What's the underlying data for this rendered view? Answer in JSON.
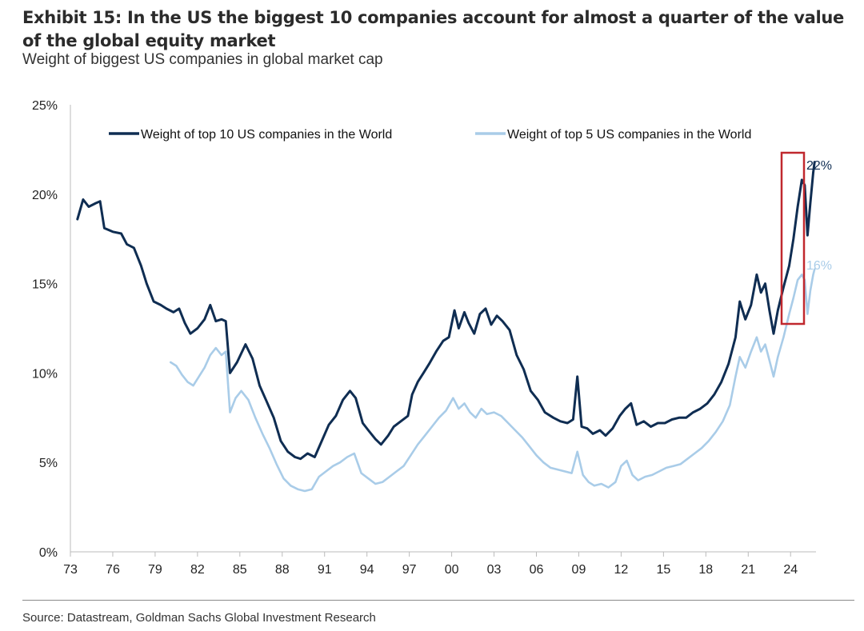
{
  "header": {
    "title": "Exhibit 15: In the US the biggest 10 companies account for almost a quarter of the value of the global equity market",
    "subtitle": "Weight of biggest US companies in global market cap"
  },
  "footer": {
    "source": "Source: Datastream, Goldman Sachs Global Investment Research"
  },
  "colors": {
    "top10": "#0f2d52",
    "top5": "#a9cce8",
    "highlight_box": "#c0282e",
    "axis": "#bbbbbb"
  },
  "chart_data": {
    "type": "line",
    "title": "Exhibit 15: In the US the biggest 10 companies account for almost a quarter of the value of the global equity market",
    "subtitle": "Weight of biggest US companies in global market cap",
    "xlabel": "",
    "ylabel": "",
    "x_ticks": [
      "73",
      "76",
      "79",
      "82",
      "85",
      "88",
      "91",
      "94",
      "97",
      "00",
      "03",
      "06",
      "09",
      "12",
      "15",
      "18",
      "21",
      "24"
    ],
    "x_tick_years": [
      1973,
      1976,
      1979,
      1982,
      1985,
      1988,
      1991,
      1994,
      1997,
      2000,
      2003,
      2006,
      2009,
      2012,
      2015,
      2018,
      2021,
      2024
    ],
    "y_ticks": [
      "0%",
      "5%",
      "10%",
      "15%",
      "20%",
      "25%"
    ],
    "ylim": [
      0,
      25
    ],
    "xlim": [
      1973,
      2025.8
    ],
    "grid": false,
    "legend_position": "top",
    "series": [
      {
        "name": "Weight of top 10 US companies in the World",
        "color": "#0f2d52",
        "end_label": "22%",
        "points": [
          [
            1973.5,
            18.6
          ],
          [
            1973.9,
            19.7
          ],
          [
            1974.3,
            19.3
          ],
          [
            1974.8,
            19.5
          ],
          [
            1975.1,
            19.6
          ],
          [
            1975.4,
            18.1
          ],
          [
            1976.0,
            17.9
          ],
          [
            1976.6,
            17.8
          ],
          [
            1977.0,
            17.2
          ],
          [
            1977.5,
            17.0
          ],
          [
            1978.0,
            16.0
          ],
          [
            1978.4,
            15.0
          ],
          [
            1978.9,
            14.0
          ],
          [
            1979.4,
            13.8
          ],
          [
            1979.8,
            13.6
          ],
          [
            1980.3,
            13.4
          ],
          [
            1980.7,
            13.6
          ],
          [
            1981.1,
            12.8
          ],
          [
            1981.5,
            12.2
          ],
          [
            1982.0,
            12.5
          ],
          [
            1982.5,
            13.0
          ],
          [
            1982.9,
            13.8
          ],
          [
            1983.3,
            12.9
          ],
          [
            1983.7,
            13.0
          ],
          [
            1984.0,
            12.9
          ],
          [
            1984.3,
            10.0
          ],
          [
            1984.8,
            10.6
          ],
          [
            1985.4,
            11.6
          ],
          [
            1985.9,
            10.8
          ],
          [
            1986.4,
            9.3
          ],
          [
            1986.9,
            8.4
          ],
          [
            1987.4,
            7.5
          ],
          [
            1987.9,
            6.2
          ],
          [
            1988.4,
            5.6
          ],
          [
            1988.9,
            5.3
          ],
          [
            1989.3,
            5.2
          ],
          [
            1989.8,
            5.5
          ],
          [
            1990.3,
            5.3
          ],
          [
            1990.8,
            6.2
          ],
          [
            1991.3,
            7.1
          ],
          [
            1991.8,
            7.6
          ],
          [
            1992.3,
            8.5
          ],
          [
            1992.8,
            9.0
          ],
          [
            1993.2,
            8.6
          ],
          [
            1993.7,
            7.2
          ],
          [
            1994.1,
            6.8
          ],
          [
            1994.6,
            6.3
          ],
          [
            1995.0,
            6.0
          ],
          [
            1995.5,
            6.5
          ],
          [
            1995.9,
            7.0
          ],
          [
            1996.4,
            7.3
          ],
          [
            1996.9,
            7.6
          ],
          [
            1997.2,
            8.8
          ],
          [
            1997.6,
            9.5
          ],
          [
            1998.0,
            10.0
          ],
          [
            1998.4,
            10.5
          ],
          [
            1998.9,
            11.2
          ],
          [
            1999.4,
            11.8
          ],
          [
            1999.8,
            12.0
          ],
          [
            2000.2,
            13.5
          ],
          [
            2000.5,
            12.5
          ],
          [
            2000.9,
            13.4
          ],
          [
            2001.2,
            12.8
          ],
          [
            2001.6,
            12.2
          ],
          [
            2002.0,
            13.3
          ],
          [
            2002.4,
            13.6
          ],
          [
            2002.8,
            12.7
          ],
          [
            2003.2,
            13.2
          ],
          [
            2003.6,
            12.9
          ],
          [
            2004.1,
            12.4
          ],
          [
            2004.6,
            11.0
          ],
          [
            2005.1,
            10.2
          ],
          [
            2005.6,
            9.0
          ],
          [
            2006.1,
            8.5
          ],
          [
            2006.6,
            7.8
          ],
          [
            2007.2,
            7.5
          ],
          [
            2007.7,
            7.3
          ],
          [
            2008.2,
            7.2
          ],
          [
            2008.6,
            7.4
          ],
          [
            2008.9,
            9.8
          ],
          [
            2009.2,
            7.0
          ],
          [
            2009.6,
            6.9
          ],
          [
            2010.0,
            6.6
          ],
          [
            2010.5,
            6.8
          ],
          [
            2010.9,
            6.5
          ],
          [
            2011.4,
            6.9
          ],
          [
            2011.9,
            7.6
          ],
          [
            2012.3,
            8.0
          ],
          [
            2012.7,
            8.3
          ],
          [
            2013.1,
            7.1
          ],
          [
            2013.6,
            7.3
          ],
          [
            2014.1,
            7.0
          ],
          [
            2014.6,
            7.2
          ],
          [
            2015.1,
            7.2
          ],
          [
            2015.6,
            7.4
          ],
          [
            2016.1,
            7.5
          ],
          [
            2016.6,
            7.5
          ],
          [
            2017.1,
            7.8
          ],
          [
            2017.6,
            8.0
          ],
          [
            2018.1,
            8.3
          ],
          [
            2018.6,
            8.8
          ],
          [
            2019.1,
            9.5
          ],
          [
            2019.6,
            10.5
          ],
          [
            2020.1,
            12.0
          ],
          [
            2020.4,
            14.0
          ],
          [
            2020.8,
            13.0
          ],
          [
            2021.2,
            13.8
          ],
          [
            2021.6,
            15.5
          ],
          [
            2021.9,
            14.5
          ],
          [
            2022.2,
            15.0
          ],
          [
            2022.5,
            13.5
          ],
          [
            2022.8,
            12.2
          ],
          [
            2023.1,
            13.5
          ],
          [
            2023.5,
            14.8
          ],
          [
            2023.9,
            16.0
          ],
          [
            2024.2,
            17.5
          ],
          [
            2024.5,
            19.3
          ],
          [
            2024.8,
            20.8
          ],
          [
            2025.0,
            20.5
          ],
          [
            2025.2,
            17.7
          ],
          [
            2025.4,
            19.5
          ],
          [
            2025.6,
            21.2
          ],
          [
            2025.7,
            21.8
          ]
        ]
      },
      {
        "name": "Weight of top 5 US companies in the World",
        "color": "#a9cce8",
        "end_label": "16%",
        "points": [
          [
            1980.1,
            10.6
          ],
          [
            1980.5,
            10.4
          ],
          [
            1980.9,
            9.9
          ],
          [
            1981.3,
            9.5
          ],
          [
            1981.7,
            9.3
          ],
          [
            1982.1,
            9.8
          ],
          [
            1982.5,
            10.3
          ],
          [
            1982.9,
            11.0
          ],
          [
            1983.3,
            11.4
          ],
          [
            1983.7,
            11.0
          ],
          [
            1984.0,
            11.2
          ],
          [
            1984.3,
            7.8
          ],
          [
            1984.7,
            8.6
          ],
          [
            1985.1,
            9.0
          ],
          [
            1985.6,
            8.5
          ],
          [
            1986.1,
            7.5
          ],
          [
            1986.6,
            6.6
          ],
          [
            1987.1,
            5.8
          ],
          [
            1987.6,
            4.9
          ],
          [
            1988.1,
            4.1
          ],
          [
            1988.6,
            3.7
          ],
          [
            1989.1,
            3.5
          ],
          [
            1989.6,
            3.4
          ],
          [
            1990.1,
            3.5
          ],
          [
            1990.6,
            4.2
          ],
          [
            1991.1,
            4.5
          ],
          [
            1991.6,
            4.8
          ],
          [
            1992.1,
            5.0
          ],
          [
            1992.6,
            5.3
          ],
          [
            1993.1,
            5.5
          ],
          [
            1993.6,
            4.4
          ],
          [
            1994.1,
            4.1
          ],
          [
            1994.6,
            3.8
          ],
          [
            1995.1,
            3.9
          ],
          [
            1995.6,
            4.2
          ],
          [
            1996.1,
            4.5
          ],
          [
            1996.6,
            4.8
          ],
          [
            1997.1,
            5.4
          ],
          [
            1997.6,
            6.0
          ],
          [
            1998.1,
            6.5
          ],
          [
            1998.6,
            7.0
          ],
          [
            1999.1,
            7.5
          ],
          [
            1999.6,
            7.9
          ],
          [
            2000.1,
            8.6
          ],
          [
            2000.5,
            8.0
          ],
          [
            2000.9,
            8.3
          ],
          [
            2001.3,
            7.8
          ],
          [
            2001.7,
            7.5
          ],
          [
            2002.1,
            8.0
          ],
          [
            2002.5,
            7.7
          ],
          [
            2003.0,
            7.8
          ],
          [
            2003.5,
            7.6
          ],
          [
            2004.0,
            7.2
          ],
          [
            2004.5,
            6.8
          ],
          [
            2005.0,
            6.4
          ],
          [
            2005.5,
            5.9
          ],
          [
            2006.0,
            5.4
          ],
          [
            2006.5,
            5.0
          ],
          [
            2007.0,
            4.7
          ],
          [
            2007.5,
            4.6
          ],
          [
            2008.0,
            4.5
          ],
          [
            2008.5,
            4.4
          ],
          [
            2008.9,
            5.6
          ],
          [
            2009.3,
            4.3
          ],
          [
            2009.7,
            3.9
          ],
          [
            2010.1,
            3.7
          ],
          [
            2010.6,
            3.8
          ],
          [
            2011.1,
            3.6
          ],
          [
            2011.6,
            3.9
          ],
          [
            2012.0,
            4.8
          ],
          [
            2012.4,
            5.1
          ],
          [
            2012.8,
            4.3
          ],
          [
            2013.2,
            4.0
          ],
          [
            2013.7,
            4.2
          ],
          [
            2014.2,
            4.3
          ],
          [
            2014.7,
            4.5
          ],
          [
            2015.2,
            4.7
          ],
          [
            2015.7,
            4.8
          ],
          [
            2016.2,
            4.9
          ],
          [
            2016.7,
            5.2
          ],
          [
            2017.2,
            5.5
          ],
          [
            2017.7,
            5.8
          ],
          [
            2018.2,
            6.2
          ],
          [
            2018.7,
            6.7
          ],
          [
            2019.2,
            7.3
          ],
          [
            2019.7,
            8.2
          ],
          [
            2020.1,
            9.8
          ],
          [
            2020.4,
            10.9
          ],
          [
            2020.8,
            10.3
          ],
          [
            2021.2,
            11.2
          ],
          [
            2021.6,
            12.0
          ],
          [
            2021.9,
            11.2
          ],
          [
            2022.2,
            11.6
          ],
          [
            2022.5,
            10.7
          ],
          [
            2022.8,
            9.8
          ],
          [
            2023.1,
            10.9
          ],
          [
            2023.5,
            12.0
          ],
          [
            2023.9,
            13.3
          ],
          [
            2024.2,
            14.2
          ],
          [
            2024.5,
            15.2
          ],
          [
            2024.8,
            15.5
          ],
          [
            2025.0,
            15.2
          ],
          [
            2025.2,
            13.3
          ],
          [
            2025.4,
            14.6
          ],
          [
            2025.6,
            15.5
          ],
          [
            2025.7,
            15.8
          ]
        ]
      }
    ]
  }
}
